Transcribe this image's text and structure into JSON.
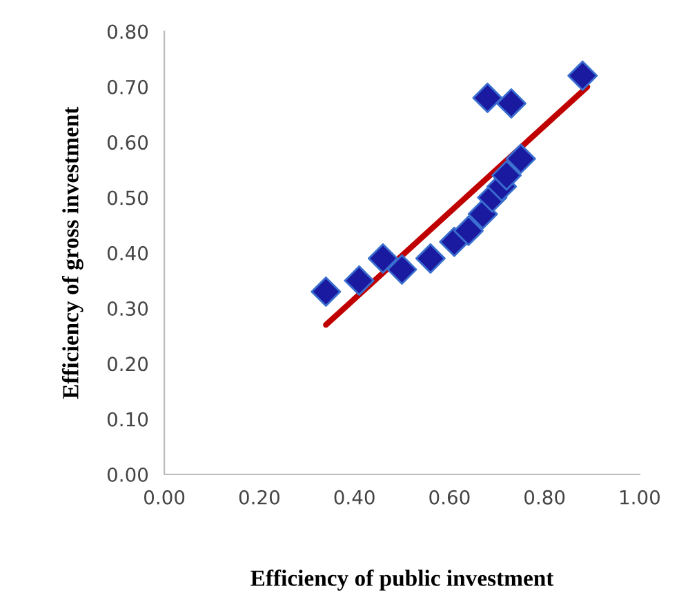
{
  "chart_data": {
    "type": "scatter",
    "xlabel": "Efficiency of public investment",
    "ylabel": "Efficiency of gross investment",
    "xlim": [
      0,
      1
    ],
    "xticks": [
      {
        "value": 0,
        "label": "0.00"
      },
      {
        "value": 0.2,
        "label": "0.20"
      },
      {
        "value": 0.4,
        "label": "0.40"
      },
      {
        "value": 0.6,
        "label": "0.60"
      },
      {
        "value": 0.8,
        "label": "0.80"
      },
      {
        "value": 1,
        "label": "1.00"
      }
    ],
    "ylim": [
      0,
      0.8
    ],
    "yticks": [
      {
        "value": 0,
        "label": "0.00"
      },
      {
        "value": 0.1,
        "label": "0.10"
      },
      {
        "value": 0.2,
        "label": "0.20"
      },
      {
        "value": 0.3,
        "label": "0.30"
      },
      {
        "value": 0.4,
        "label": "0.40"
      },
      {
        "value": 0.5,
        "label": "0.50"
      },
      {
        "value": 0.6,
        "label": "0.60"
      },
      {
        "value": 0.7,
        "label": "0.70"
      },
      {
        "value": 0.8,
        "label": "0.80"
      }
    ],
    "grid": false,
    "legend": false,
    "series": [
      {
        "color": "#1a1aa0",
        "marker": "diamond",
        "x": [
          0.34,
          0.41,
          0.46,
          0.5,
          0.56,
          0.61,
          0.64,
          0.67,
          0.69,
          0.71,
          0.72,
          0.75,
          0.68,
          0.73,
          0.88
        ],
        "values": [
          0.33,
          0.35,
          0.39,
          0.37,
          0.39,
          0.42,
          0.44,
          0.47,
          0.5,
          0.52,
          0.54,
          0.57,
          0.68,
          0.67,
          0.72
        ]
      },
      {
        "type": "line",
        "color": "#c00000",
        "marker": "none",
        "line_style": "solid",
        "x": [
          0.34,
          0.89
        ],
        "values": [
          0.27,
          0.7
        ]
      }
    ]
  }
}
